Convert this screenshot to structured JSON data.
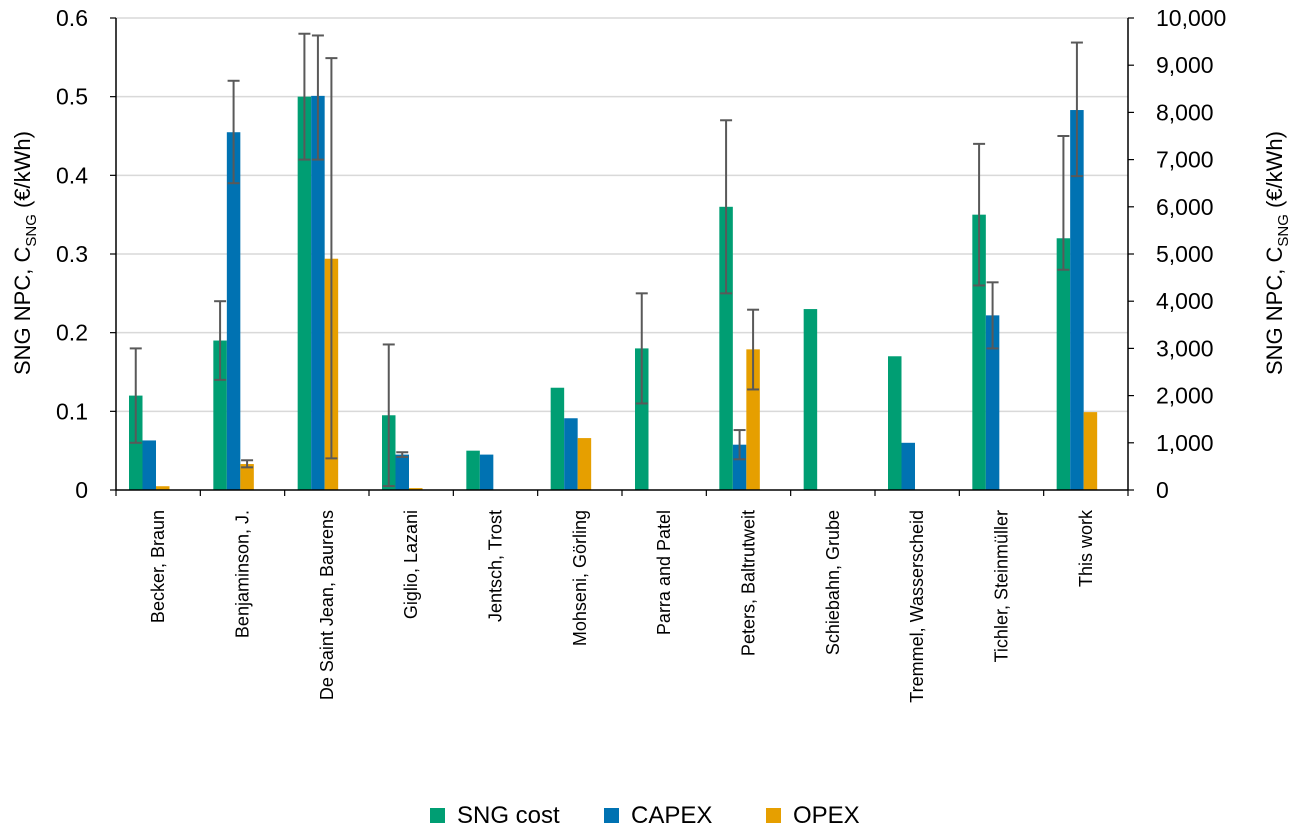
{
  "chart_data": {
    "type": "bar",
    "title": "",
    "categories": [
      "Becker, Braun",
      "Benjaminson, J.",
      "De Saint Jean, Baurens",
      "Giglio, Lazani",
      "Jentsch, Trost",
      "Mohseni, Görling",
      "Parra and Patel",
      "Peters, Baltrutweit",
      "Schiebahn, Grube",
      "Tremmel, Wasserscheid",
      "Tichler, Steinmüller",
      "This work"
    ],
    "ylabel_left": {
      "main": "SNG NPC, C",
      "sub": "SNG",
      "unit": " (€/kWh)"
    },
    "ylabel_right": {
      "main": "SNG NPC, C",
      "sub": "SNG",
      "unit": " (€/kWh)"
    },
    "ylim_left": [
      0,
      0.6
    ],
    "yticks_left": [
      "0",
      "0.1",
      "0.2",
      "0.3",
      "0.4",
      "0.5",
      "0.6"
    ],
    "ylim_right": [
      0,
      10000
    ],
    "yticks_right": [
      "0",
      "1,000",
      "2,000",
      "3,000",
      "4,000",
      "5,000",
      "6,000",
      "7,000",
      "8,000",
      "9,000",
      "10,000"
    ],
    "grid": true,
    "legend_position": "bottom",
    "series": [
      {
        "name": "SNG cost",
        "axis": "left",
        "color": "#009e73",
        "values": [
          0.12,
          0.19,
          0.5,
          0.095,
          0.05,
          0.13,
          0.18,
          0.36,
          0.23,
          0.17,
          0.35,
          0.32
        ],
        "error_low": [
          0.06,
          0.14,
          0.42,
          0.005,
          null,
          null,
          0.11,
          0.25,
          null,
          null,
          0.26,
          0.28
        ],
        "error_high": [
          0.18,
          0.24,
          0.58,
          0.185,
          null,
          null,
          0.25,
          0.47,
          null,
          null,
          0.44,
          0.45
        ]
      },
      {
        "name": "CAPEX",
        "axis": "right",
        "color": "#0072b2",
        "values": [
          1050,
          7580,
          8350,
          750,
          750,
          1520,
          0,
          960,
          0,
          1000,
          3700,
          8050
        ],
        "error_low": [
          null,
          6500,
          7000,
          700,
          null,
          null,
          null,
          650,
          null,
          null,
          3000,
          6650
        ],
        "error_high": [
          null,
          8670,
          9630,
          800,
          null,
          null,
          null,
          1270,
          null,
          null,
          4400,
          9480
        ]
      },
      {
        "name": "OPEX",
        "axis": "right",
        "color": "#e69f00",
        "values": [
          80,
          550,
          4900,
          40,
          0,
          1100,
          0,
          2980,
          0,
          0,
          0,
          1650
        ],
        "error_low": [
          null,
          480,
          670,
          null,
          null,
          null,
          null,
          2130,
          null,
          null,
          null,
          null
        ],
        "error_high": [
          null,
          630,
          9150,
          null,
          null,
          null,
          null,
          3820,
          null,
          null,
          null,
          null
        ]
      }
    ]
  }
}
